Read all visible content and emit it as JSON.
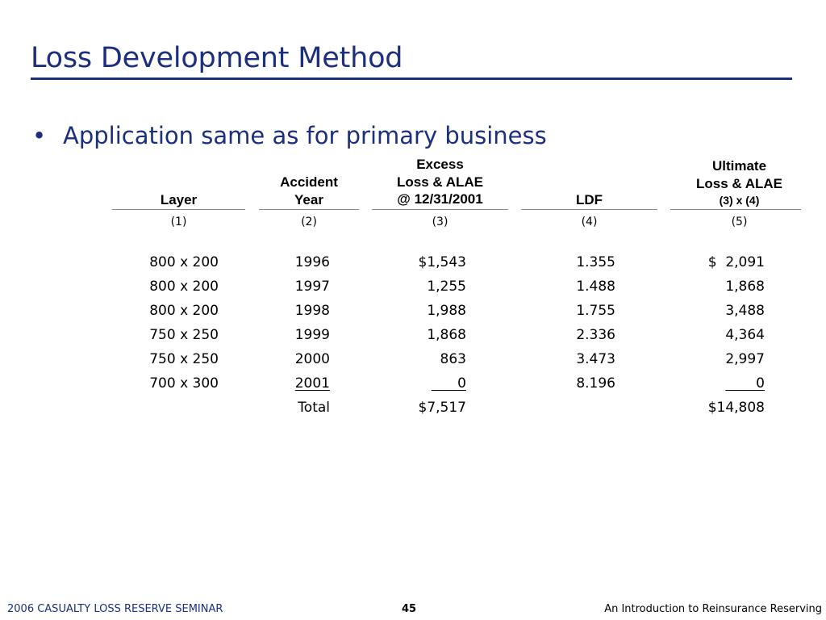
{
  "title": "Loss Development Method",
  "bullet": "Application same as for primary business",
  "headers": {
    "layer": [
      "Layer"
    ],
    "accident_year": [
      "Accident",
      "Year"
    ],
    "excess": [
      "Excess",
      "Loss & ALAE",
      "@ 12/31/2001"
    ],
    "ldf": [
      "LDF"
    ],
    "ultimate": [
      "Ultimate",
      "Loss & ALAE",
      "(3) x (4)"
    ]
  },
  "column_numbers": [
    "(1)",
    "(2)",
    "(3)",
    "(4)",
    "(5)"
  ],
  "rows": [
    {
      "layer": "800 x 200",
      "year": "1996",
      "excess": "$1,543",
      "ldf": "1.355",
      "ultimate": "$  2,091"
    },
    {
      "layer": "800 x 200",
      "year": "1997",
      "excess": "1,255",
      "ldf": "1.488",
      "ultimate": "1,868"
    },
    {
      "layer": "800 x 200",
      "year": "1998",
      "excess": "1,988",
      "ldf": "1.755",
      "ultimate": "3,488"
    },
    {
      "layer": "750 x 250",
      "year": "1999",
      "excess": "1,868",
      "ldf": "2.336",
      "ultimate": "4,364"
    },
    {
      "layer": "750 x 250",
      "year": "2000",
      "excess": "863",
      "ldf": "3.473",
      "ultimate": "2,997"
    },
    {
      "layer": "700 x 300",
      "year": "2001",
      "excess": "0",
      "ldf": "8.196",
      "ultimate": "0"
    }
  ],
  "total": {
    "label": "Total",
    "excess": "$7,517",
    "ultimate": "$14,808"
  },
  "footer": {
    "left": "2006 CASUALTY LOSS RESERVE SEMINAR",
    "page": "45",
    "right": "An Introduction to Reinsurance Reserving"
  },
  "colors": {
    "accent": "#1c2e7e"
  }
}
